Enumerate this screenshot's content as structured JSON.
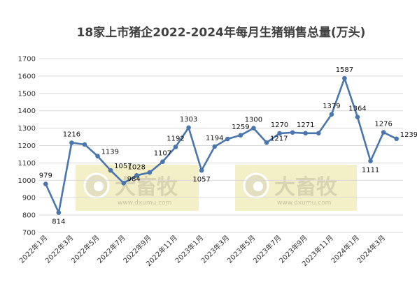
{
  "chart_data": {
    "type": "line",
    "title": "18家上市猪企2022-2024年每月生猪销售总量(万头)",
    "xlabel": "",
    "ylabel": "",
    "ylim": [
      700,
      1700
    ],
    "yticks": [
      700,
      800,
      900,
      1000,
      1100,
      1200,
      1300,
      1400,
      1500,
      1600,
      1700
    ],
    "grid": true,
    "legend": "none",
    "x": [
      "2022年1月",
      "2022年2月",
      "2022年3月",
      "2022年4月",
      "2022年5月",
      "2022年6月",
      "2022年7月",
      "2022年8月",
      "2022年9月",
      "2022年10月",
      "2022年11月",
      "2022年12月",
      "2023年1月",
      "2023年2月",
      "2023年3月",
      "2023年4月",
      "2023年5月",
      "2023年6月",
      "2023年7月",
      "2023年8月",
      "2023年9月",
      "2023年10月",
      "2023年11月",
      "2023年12月",
      "2024年1月",
      "2024年2月",
      "2024年3月",
      "2024年4月"
    ],
    "xtick_labels": [
      "2022年1月",
      "2022年3月",
      "2022年5月",
      "2022年7月",
      "2022年9月",
      "2022年11月",
      "2023年1月",
      "2023年3月",
      "2023年5月",
      "2023年7月",
      "2023年9月",
      "2023年11月",
      "2024年1月",
      "2024年3月"
    ],
    "series": [
      {
        "values": [
          979,
          814,
          1216,
          1206,
          1139,
          1057,
          984,
          1028,
          1045,
          1107,
          1192,
          1303,
          1057,
          1194,
          1238,
          1259,
          1300,
          1217,
          1270,
          1275,
          1271,
          1271,
          1379,
          1587,
          1364,
          1111,
          1276,
          1239
        ],
        "labels": [
          "979",
          "814",
          "1216",
          "",
          "1139",
          "1057",
          "984",
          "1028",
          "",
          "1107",
          "1192",
          "1303",
          "1057",
          "1194",
          "",
          "1259",
          "1300",
          "1217",
          "1270",
          "",
          "1271",
          "",
          "1379",
          "1587",
          "1364",
          "1111",
          "1276",
          "1239"
        ],
        "label_pos": [
          "above",
          "below",
          "above",
          "",
          "right",
          "right",
          "right",
          "above",
          "",
          "above",
          "above",
          "above",
          "below",
          "above",
          "",
          "above",
          "above",
          "right",
          "above",
          "",
          "above",
          "",
          "above",
          "above",
          "above",
          "below",
          "above",
          "right"
        ],
        "color": "#4a76ad"
      }
    ],
    "watermarks": [
      {
        "brand": "大畜牧",
        "url": "www.dxumu.com"
      },
      {
        "brand": "大畜牧",
        "url": "www.dxumu.com"
      }
    ]
  },
  "colors": {
    "line": "#4a76ad",
    "watermark_bg": "#f3efc6",
    "grid": "#d9d9d9",
    "title": "#404040"
  }
}
